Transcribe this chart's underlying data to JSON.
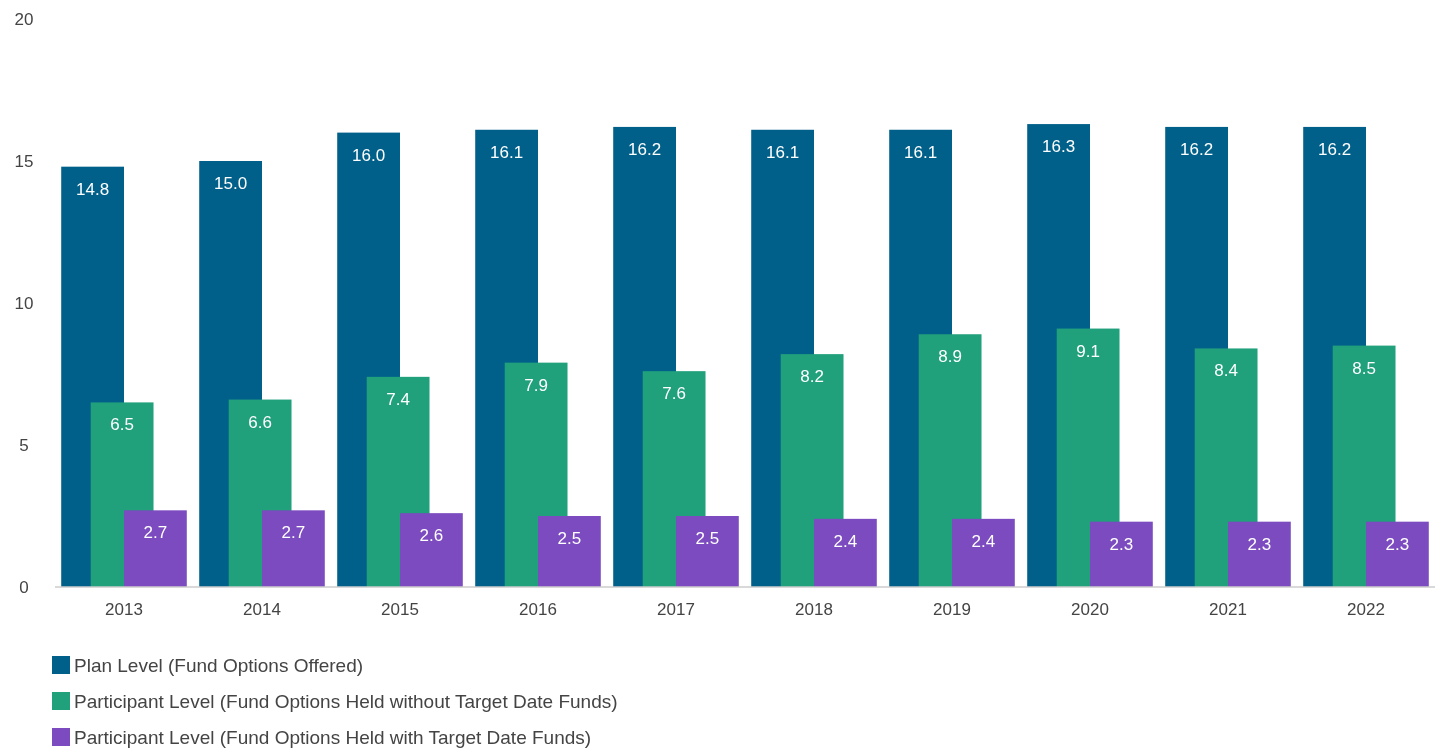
{
  "chart_data": {
    "type": "bar",
    "categories": [
      "2013",
      "2014",
      "2015",
      "2016",
      "2017",
      "2018",
      "2019",
      "2020",
      "2021",
      "2022"
    ],
    "series": [
      {
        "name": "Plan Level (Fund Options Offered)",
        "color": "#00608a",
        "values": [
          14.8,
          15.0,
          16.0,
          16.1,
          16.2,
          16.1,
          16.1,
          16.3,
          16.2,
          16.2
        ],
        "value_labels": [
          "14.8",
          "15.0",
          "16.0",
          "16.1",
          "16.2",
          "16.1",
          "16.1",
          "16.3",
          "16.2",
          "16.2"
        ]
      },
      {
        "name": "Participant Level (Fund Options Held without Target Date Funds)",
        "color": "#21a07c",
        "values": [
          6.5,
          6.6,
          7.4,
          7.9,
          7.6,
          8.2,
          8.9,
          9.1,
          8.4,
          8.5
        ],
        "value_labels": [
          "6.5",
          "6.6",
          "7.4",
          "7.9",
          "7.6",
          "8.2",
          "8.9",
          "9.1",
          "8.4",
          "8.5"
        ]
      },
      {
        "name": "Participant Level (Fund Options Held with Target Date Funds)",
        "color": "#7b4bbf",
        "values": [
          2.7,
          2.7,
          2.6,
          2.5,
          2.5,
          2.4,
          2.4,
          2.3,
          2.3,
          2.3
        ],
        "value_labels": [
          "2.7",
          "2.7",
          "2.6",
          "2.5",
          "2.5",
          "2.4",
          "2.4",
          "2.3",
          "2.3",
          "2.3"
        ]
      }
    ],
    "ylim": [
      0,
      20
    ],
    "yticks": [
      0,
      5,
      10,
      15,
      20
    ],
    "grid": false,
    "legend": "bottom left"
  }
}
